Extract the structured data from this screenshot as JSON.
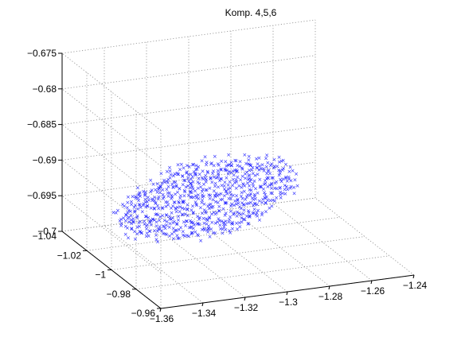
{
  "chart_data": {
    "type": "scatter",
    "title": "Komp. 4,5,6",
    "projection": "3d",
    "grid": true,
    "marker": "x",
    "marker_color": "#1a1aff",
    "axes": {
      "x": {
        "label": "",
        "range": [
          -1.36,
          -1.24
        ],
        "ticks": [
          -1.36,
          -1.34,
          -1.32,
          -1.3,
          -1.28,
          -1.26,
          -1.24
        ],
        "tick_labels": [
          "−1.36",
          "−1.34",
          "−1.32",
          "−1.3",
          "−1.28",
          "−1.26",
          "−1.24"
        ]
      },
      "y": {
        "label": "",
        "range": [
          -1.04,
          -0.96
        ],
        "ticks": [
          -1.04,
          -1.02,
          -1.0,
          -0.98,
          -0.96
        ],
        "tick_labels": [
          "−1.04",
          "−1.02",
          "−1",
          "−0.98",
          "−0.96"
        ]
      },
      "z": {
        "label": "",
        "range": [
          -0.7,
          -0.675
        ],
        "ticks": [
          -0.675,
          -0.68,
          -0.685,
          -0.69,
          -0.695,
          -0.7
        ],
        "tick_labels": [
          "−0.675",
          "−0.68",
          "−0.685",
          "−0.69",
          "−0.695",
          "−0.7"
        ]
      }
    },
    "point_cloud": {
      "description_of_shape": "dense lattice of points on a tilted plane",
      "x_range": [
        -1.345,
        -1.265
      ],
      "y_range": [
        -1.035,
        -1.0
      ],
      "z_range": [
        -0.7,
        -0.689
      ],
      "approx_count": 900
    }
  }
}
